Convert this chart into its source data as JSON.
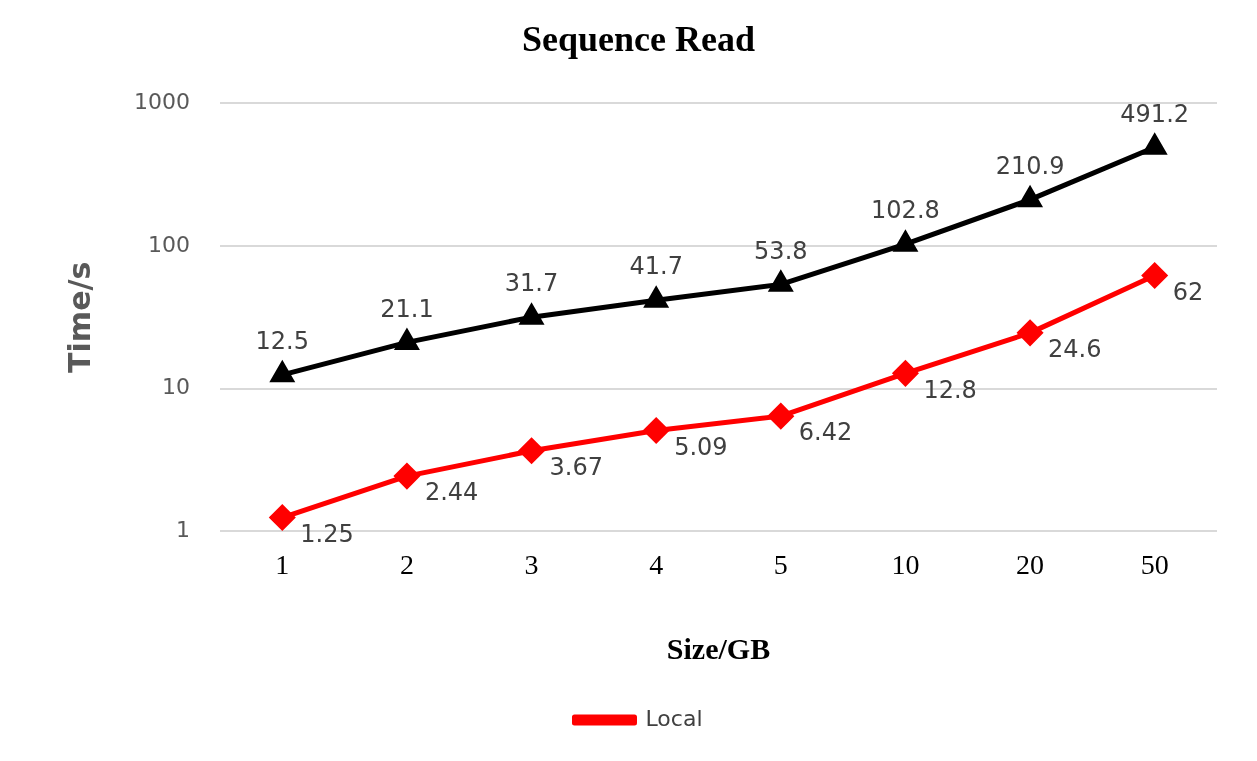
{
  "chart_data": {
    "type": "line",
    "title": "Sequence Read",
    "xlabel": "Size/GB",
    "ylabel": "Time/s",
    "categories": [
      "1",
      "2",
      "3",
      "4",
      "5",
      "10",
      "20",
      "50"
    ],
    "series": [
      {
        "name": "Local",
        "color": "#ff0000",
        "marker": "diamond",
        "values": [
          1.25,
          2.44,
          3.67,
          5.09,
          6.42,
          12.8,
          24.6,
          62
        ]
      },
      {
        "color": "#000000",
        "marker": "triangle",
        "values": [
          12.5,
          21.1,
          31.7,
          41.7,
          53.8,
          102.8,
          210.9,
          491.2
        ]
      }
    ],
    "log": "y",
    "ylim": [
      1,
      1000
    ],
    "yticks": [
      1,
      10,
      100,
      1000
    ],
    "grid": "y",
    "legend": "bottom",
    "data_labels": true,
    "line_style": "solid"
  }
}
